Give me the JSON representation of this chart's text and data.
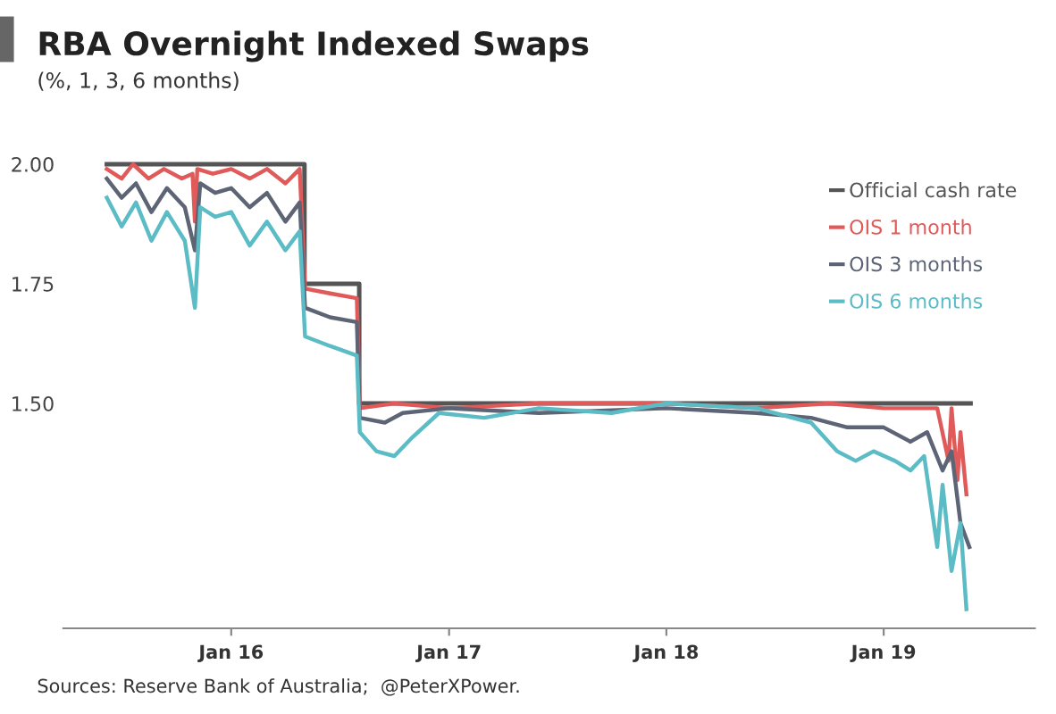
{
  "chart_data": {
    "type": "line",
    "title": "RBA Overnight Indexed Swaps",
    "subtitle": "(%, 1, 3, 6 months)",
    "annotations": [
      "Sources: Reserve Bank of Australia;  @PeterXPower."
    ],
    "xlim": [
      "2015-03-25",
      "2019-09-12"
    ],
    "xticks": [
      {
        "value": "2016-01-01",
        "label": "Jan 16"
      },
      {
        "value": "2017-01-01",
        "label": "Jan 17"
      },
      {
        "value": "2018-01-01",
        "label": "Jan 18"
      },
      {
        "value": "2019-01-01",
        "label": "Jan 19"
      }
    ],
    "ylim": [
      1.03,
      2.0
    ],
    "yticks": [
      {
        "value": 1.5,
        "label": "1.50"
      },
      {
        "value": 1.75,
        "label": "1.75"
      },
      {
        "value": 2.0,
        "label": "2.00"
      }
    ],
    "grid": false,
    "legend": "top right",
    "series": [
      {
        "name": "Official cash rate",
        "type": "step",
        "color": "#555555",
        "x": [
          "2015-06-06",
          "2016-05-03",
          "2016-08-03",
          "2019-05-27"
        ],
        "values": [
          2.0,
          1.75,
          1.5,
          1.5
        ]
      },
      {
        "name": "OIS 1 month",
        "color": "#e05a5a",
        "x": [
          "2015-06-06",
          "2015-07-01",
          "2015-07-20",
          "2015-08-15",
          "2015-09-10",
          "2015-10-10",
          "2015-10-28",
          "2015-11-01",
          "2015-11-05",
          "2015-12-01",
          "2016-01-01",
          "2016-02-01",
          "2016-03-01",
          "2016-04-01",
          "2016-04-25",
          "2016-05-04",
          "2016-06-15",
          "2016-07-30",
          "2016-08-04",
          "2016-10-01",
          "2017-01-01",
          "2017-06-01",
          "2018-01-01",
          "2018-06-01",
          "2018-10-01",
          "2019-01-01",
          "2019-04-01",
          "2019-04-20",
          "2019-04-25",
          "2019-05-05",
          "2019-05-10",
          "2019-05-20"
        ],
        "values": [
          1.99,
          1.97,
          2.0,
          1.97,
          1.99,
          1.97,
          1.98,
          1.88,
          1.99,
          1.98,
          1.99,
          1.97,
          1.99,
          1.96,
          1.99,
          1.74,
          1.73,
          1.72,
          1.49,
          1.5,
          1.49,
          1.5,
          1.5,
          1.49,
          1.5,
          1.49,
          1.49,
          1.38,
          1.49,
          1.34,
          1.44,
          1.31
        ]
      },
      {
        "name": "OIS 3 months",
        "color": "#5d6475",
        "x": [
          "2015-06-06",
          "2015-07-01",
          "2015-07-25",
          "2015-08-20",
          "2015-09-15",
          "2015-10-15",
          "2015-11-01",
          "2015-11-10",
          "2015-12-05",
          "2016-01-01",
          "2016-02-01",
          "2016-03-01",
          "2016-04-01",
          "2016-04-25",
          "2016-05-04",
          "2016-06-15",
          "2016-07-30",
          "2016-08-04",
          "2016-09-15",
          "2016-10-15",
          "2017-01-01",
          "2017-06-01",
          "2018-01-01",
          "2018-06-01",
          "2018-09-01",
          "2018-11-01",
          "2019-01-01",
          "2019-02-15",
          "2019-03-15",
          "2019-04-10",
          "2019-04-25",
          "2019-05-10",
          "2019-05-25"
        ],
        "values": [
          1.97,
          1.93,
          1.96,
          1.9,
          1.95,
          1.91,
          1.82,
          1.96,
          1.94,
          1.95,
          1.91,
          1.94,
          1.88,
          1.92,
          1.7,
          1.68,
          1.67,
          1.47,
          1.46,
          1.48,
          1.49,
          1.48,
          1.49,
          1.48,
          1.47,
          1.45,
          1.45,
          1.42,
          1.44,
          1.36,
          1.4,
          1.25,
          1.2
        ]
      },
      {
        "name": "OIS 6 months",
        "color": "#5bbcc6",
        "x": [
          "2015-06-06",
          "2015-07-01",
          "2015-07-25",
          "2015-08-20",
          "2015-09-15",
          "2015-10-15",
          "2015-11-01",
          "2015-11-10",
          "2015-12-05",
          "2016-01-01",
          "2016-02-01",
          "2016-03-01",
          "2016-04-01",
          "2016-04-25",
          "2016-05-04",
          "2016-06-15",
          "2016-07-30",
          "2016-08-04",
          "2016-09-01",
          "2016-10-01",
          "2016-11-01",
          "2016-12-15",
          "2017-03-01",
          "2017-06-01",
          "2017-10-01",
          "2018-01-01",
          "2018-06-01",
          "2018-09-01",
          "2018-10-15",
          "2018-11-15",
          "2018-12-15",
          "2019-01-20",
          "2019-02-15",
          "2019-03-10",
          "2019-04-01",
          "2019-04-10",
          "2019-04-25",
          "2019-05-10",
          "2019-05-20"
        ],
        "values": [
          1.93,
          1.87,
          1.92,
          1.84,
          1.9,
          1.84,
          1.7,
          1.91,
          1.89,
          1.9,
          1.83,
          1.88,
          1.82,
          1.86,
          1.64,
          1.62,
          1.6,
          1.44,
          1.4,
          1.39,
          1.43,
          1.48,
          1.47,
          1.49,
          1.48,
          1.5,
          1.49,
          1.46,
          1.4,
          1.38,
          1.4,
          1.38,
          1.36,
          1.39,
          1.2,
          1.33,
          1.15,
          1.25,
          1.07
        ]
      }
    ]
  }
}
